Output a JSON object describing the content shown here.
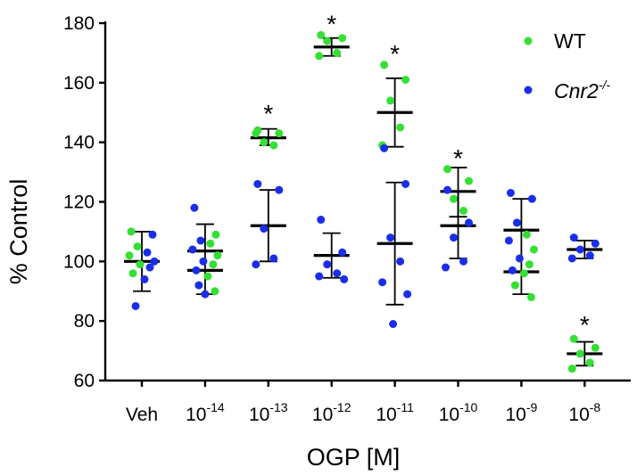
{
  "chart_data": {
    "type": "scatter",
    "ylabel": "% Control",
    "xlabel": "OGP [M]",
    "ylim": [
      60,
      180
    ],
    "yticks": [
      60,
      80,
      100,
      120,
      140,
      160,
      180
    ],
    "grid": false,
    "legend_position": "top-right",
    "categories": [
      {
        "base": "Veh",
        "exp": ""
      },
      {
        "base": "10",
        "exp": "-14"
      },
      {
        "base": "10",
        "exp": "-13"
      },
      {
        "base": "10",
        "exp": "-12"
      },
      {
        "base": "10",
        "exp": "-11"
      },
      {
        "base": "10",
        "exp": "-10"
      },
      {
        "base": "10",
        "exp": "-9"
      },
      {
        "base": "10",
        "exp": "-8"
      }
    ],
    "series": [
      {
        "name": "WT",
        "color": "#33e033",
        "points": [
          [],
          [],
          [
            144,
            143,
            140,
            139,
            143
          ],
          [
            176,
            175,
            174,
            170,
            169
          ],
          [
            166,
            161,
            154,
            145,
            139
          ],
          [
            131,
            127,
            121,
            117
          ],
          [],
          [
            74,
            71,
            69,
            66,
            64
          ]
        ],
        "mean": [
          null,
          null,
          141.5,
          172,
          150,
          123.5,
          null,
          69
        ],
        "err_high": [
          null,
          null,
          144.5,
          175,
          161.5,
          131.5,
          null,
          73
        ],
        "err_low": [
          null,
          null,
          139,
          169,
          138.5,
          115,
          null,
          65
        ]
      },
      {
        "name": "Cnr2",
        "name_sup": "-/-",
        "color": "#1a2ee8",
        "points": [
          [],
          [],
          [
            126,
            124,
            111,
            101,
            99
          ],
          [
            114,
            103,
            99,
            96,
            95,
            94
          ],
          [
            138,
            126,
            108,
            100,
            93,
            89,
            79
          ],
          [
            124,
            113,
            108,
            100,
            98
          ],
          [],
          [
            108,
            106,
            104,
            102,
            101
          ]
        ],
        "mean": [
          null,
          null,
          112,
          102,
          106,
          112,
          null,
          104
        ],
        "err_high": [
          null,
          null,
          124,
          109.5,
          126.5,
          123.5,
          null,
          107
        ],
        "err_low": [
          null,
          null,
          100,
          94.5,
          85.5,
          101,
          null,
          101
        ]
      },
      {
        "name": "",
        "combined": true,
        "points": [
          [
            {
              "v": 110,
              "s": 0
            },
            {
              "v": 109,
              "s": 1
            },
            {
              "v": 105,
              "s": 0
            },
            {
              "v": 103,
              "s": 1
            },
            {
              "v": 102,
              "s": 0
            },
            {
              "v": 100,
              "s": 1
            },
            {
              "v": 99,
              "s": 0
            },
            {
              "v": 98,
              "s": 1
            },
            {
              "v": 96,
              "s": 0
            },
            {
              "v": 94,
              "s": 1
            },
            {
              "v": 85,
              "s": 1
            }
          ],
          [
            {
              "v": 118,
              "s": 1
            },
            {
              "v": 109,
              "s": 0
            },
            {
              "v": 107,
              "s": 1
            },
            {
              "v": 106,
              "s": 0
            },
            {
              "v": 104,
              "s": 1
            },
            {
              "v": 102,
              "s": 0
            },
            {
              "v": 100,
              "s": 1
            },
            {
              "v": 99,
              "s": 0
            },
            {
              "v": 97,
              "s": 1
            },
            {
              "v": 95,
              "s": 0
            },
            {
              "v": 92,
              "s": 1
            },
            {
              "v": 90,
              "s": 0
            },
            {
              "v": 89,
              "s": 1
            }
          ],
          [],
          [],
          [],
          [],
          [
            {
              "v": 123,
              "s": 1
            },
            {
              "v": 121,
              "s": 1
            },
            {
              "v": 113,
              "s": 1
            },
            {
              "v": 109,
              "s": 0
            },
            {
              "v": 107,
              "s": 1
            },
            {
              "v": 104,
              "s": 0
            },
            {
              "v": 101,
              "s": 1
            },
            {
              "v": 99,
              "s": 0
            },
            {
              "v": 97,
              "s": 1
            },
            {
              "v": 96,
              "s": 0
            },
            {
              "v": 92,
              "s": 0
            },
            {
              "v": 88,
              "s": 0
            }
          ],
          []
        ],
        "mean": [
          100,
          103.5,
          null,
          null,
          null,
          null,
          110.5,
          null
        ],
        "mean2": [
          null,
          97,
          null,
          null,
          null,
          null,
          96.5,
          null
        ],
        "err_high": [
          110,
          112.5,
          null,
          null,
          null,
          null,
          121,
          null
        ],
        "err_low": [
          90,
          89,
          null,
          null,
          null,
          null,
          89,
          null
        ]
      }
    ],
    "significance": [
      "",
      "",
      "*",
      "*",
      "*",
      "*",
      "",
      "*"
    ],
    "significance_at": [
      null,
      null,
      145,
      175,
      165,
      130,
      null,
      74
    ]
  }
}
